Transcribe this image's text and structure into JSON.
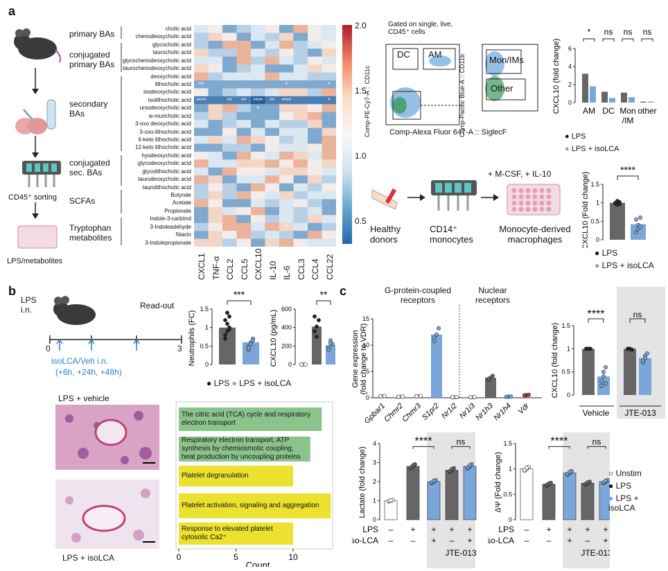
{
  "panels": {
    "a": "a",
    "b": "b",
    "c": "c"
  },
  "a": {
    "categories": [
      "primary BAs",
      "conjugated primary BAs",
      "secondary BAs",
      "conjugated sec. BAs",
      "SCFAs",
      "Tryptophan metabolites"
    ],
    "workflow": {
      "sorting": "CD45⁺ sorting",
      "plate": "LPS/metabolites"
    },
    "heatmap": {
      "rows": [
        "cholic acid",
        "chenodeoxycholic acid",
        "glycocholic acid",
        "taurocholic acid",
        "glycochenodeoxycholic acid",
        "taurochenodeoxycholic acid",
        "deoxycholic acid",
        "lithocholic acid",
        "isodeoxycholic acid",
        "isolithocholic acid",
        "ursodeoxycholic acid",
        "w-muricholic acid",
        "3-oxo deoxycholic acid",
        "3-oxo-lithocholic acid",
        "6-keto lithocholic acid",
        "12-keto lithocholic acid",
        "hyodeoxycholic acid",
        "glycodeoxycholic acid",
        "glycolithocholic acid",
        "taurodeoxycholic acid",
        "taurolithocholic acid",
        "Butyrate",
        "Acetate",
        "Propionate",
        "Indole-3-carbinol",
        "3-Indoleadehyde",
        "Niacin",
        "3-Indolepropionate"
      ],
      "cols": [
        "CXCL1",
        "TNF-α",
        "CCL2",
        "CCL5",
        "CXCL10",
        "IL-10",
        "IL-6",
        "CCL3",
        "CCL4",
        "CCL22"
      ],
      "colorbar_ticks": [
        "2.0",
        "1.5",
        "1.0",
        "0.5"
      ],
      "stars": [
        {
          "r": 7,
          "c": 0,
          "t": "**"
        },
        {
          "r": 7,
          "c": 6,
          "t": "*"
        },
        {
          "r": 7,
          "c": 9,
          "t": "*"
        },
        {
          "r": 9,
          "c": 0,
          "t": "****"
        },
        {
          "r": 9,
          "c": 2,
          "t": "**"
        },
        {
          "r": 9,
          "c": 3,
          "t": "**"
        },
        {
          "r": 9,
          "c": 4,
          "t": "****"
        },
        {
          "r": 9,
          "c": 5,
          "t": "**"
        },
        {
          "r": 9,
          "c": 6,
          "t": "****"
        },
        {
          "r": 9,
          "c": 9,
          "t": "*"
        },
        {
          "r": 10,
          "c": 4,
          "t": "*"
        },
        {
          "r": 25,
          "c": 6,
          "t": "*"
        }
      ]
    },
    "flow": {
      "gate_text": "Gated on single, live, CD45⁺ cells",
      "y1": "Comp-PE-Cy7-A :: CD11c",
      "y2": "Comp-Pacific Blue-A :: CD11b",
      "x": "Comp-Alexa Fluor 647-A :: SiglecF",
      "gates": [
        "DC",
        "AM",
        "Mon/IMs",
        "Other"
      ]
    },
    "bar1": {
      "ylabel": "CXCL10 (fold change)",
      "groups": [
        "AM",
        "DC",
        "Mon /IM",
        "other"
      ],
      "sig": [
        "*",
        "ns",
        "ns",
        "ns"
      ],
      "legend": [
        "LPS",
        "LPS + isoLCA"
      ]
    },
    "human": {
      "steps": [
        "Healthy donors",
        "CD14⁺ monocytes",
        "Monocyte-derived macrophages"
      ],
      "add": "+ M-CSF, + IL-10"
    },
    "bar2": {
      "ylabel": "CXCL10 (Fold change)",
      "sig": "****",
      "legend": [
        "LPS",
        "LPS + isoLCA"
      ]
    }
  },
  "b": {
    "timeline": {
      "lps": "LPS i.n.",
      "readout": "Read-out",
      "t0": "0",
      "t3": "3",
      "treat": "isoLCA/Veh i.n.",
      "times": "(+6h, +24h, +48h)"
    },
    "neut": {
      "ylabel": "Neutrophils (FC)",
      "sig": "***"
    },
    "cxcl": {
      "ylabel": "CXCL10 (pg/mL)",
      "sig": "**"
    },
    "legend": [
      "LPS",
      "LPS + isoLCA"
    ],
    "hist": {
      "top": "LPS + vehicle",
      "bottom": "LPS + isoLCA"
    },
    "pathways": {
      "xlabel": "Count",
      "ticks": [
        "0",
        "5",
        "10"
      ],
      "items": [
        {
          "label": "The citric acid (TCA) cycle and respiratory electron transport",
          "count": 12.5,
          "color": "#8bc48a"
        },
        {
          "label": "Respiratory electron transport, ATP synthesis by chemiosmotic coupling, heat production by uncoupling proteins",
          "count": 11.5,
          "color": "#8bc48a"
        },
        {
          "label": "Platelet degranulation",
          "count": 10,
          "color": "#ece12f"
        },
        {
          "label": "Platelet activation, signaling and aggregation",
          "count": 13.3,
          "color": "#ece12f"
        },
        {
          "label": "Response to elevated platelet cytosolic Ca2⁺",
          "count": 10,
          "color": "#ece12f"
        }
      ]
    }
  },
  "c": {
    "gpcr": "G-protein-coupled receptors",
    "nuclear": "Nuclear receptors",
    "ylabel": "Gene expression (fold change to VDR)",
    "genes": [
      "Gpbar1",
      "Chmr2",
      "Chmr3",
      "S1pr2",
      "Nr1i2",
      "Nr1i3",
      "Nr1h3",
      "Nr1h4",
      "Vdr"
    ],
    "cx": {
      "ylabel": "CXCL10 (fold change)",
      "sig": [
        "****",
        "ns"
      ],
      "groups": [
        "Vehicle",
        "JTE-013"
      ]
    },
    "lactate": {
      "ylabel": "Lactate (fold change)",
      "sig": [
        "****",
        "ns"
      ]
    },
    "dpsi": {
      "ylabel": "ΔΨ (Fold change)",
      "sig": [
        "****",
        "ns"
      ]
    },
    "rows": {
      "lps": "LPS",
      "iso": "Iso-LCA",
      "jte": "JTE-013"
    },
    "legend": [
      "Unstim",
      "LPS",
      "LPS + isoLCA"
    ]
  }
}
